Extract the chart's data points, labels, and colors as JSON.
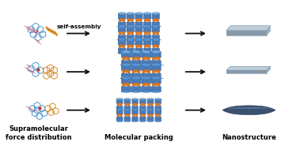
{
  "background_color": "#ffffff",
  "labels": {
    "supramolecular": "Supramolecular\nforce distribution",
    "molecular_packing": "Molecular packing",
    "nanostructure": "Nanostructure",
    "self_assembly": "self-assembly"
  },
  "molecule_blue": "#4a90c8",
  "molecule_orange": "#d4851a",
  "molecule_red": "#c0392b",
  "molecule_pink": "#c87090",
  "packing_blue": "#4a7ab5",
  "packing_blue_dark": "#2a5a95",
  "packing_orange": "#e07820",
  "packing_orange_dark": "#a05010",
  "sheet_top": "#c0cfd8",
  "sheet_side": "#8899aa",
  "sheet_edge": "#6080a0",
  "needle_body": "#3a5070",
  "needle_highlight": "#6080a8",
  "dashed_color": "#444444",
  "arrow_color": "#111111",
  "label_fontsize": 6.0,
  "selfassembly_fontsize": 5.2
}
